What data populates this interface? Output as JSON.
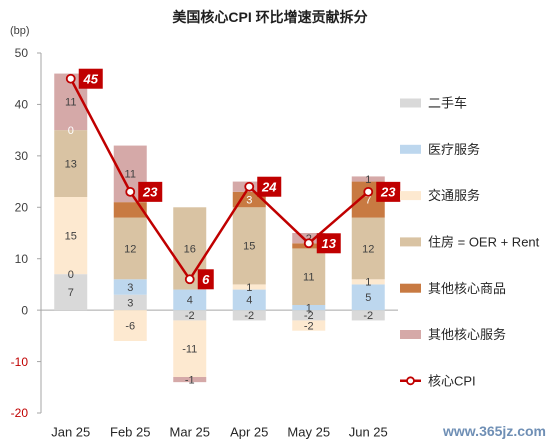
{
  "watermark": "www.365jz.com",
  "chart_data": {
    "type": "bar",
    "stacked": true,
    "title": "美国核心CPI 环比增速贡献拆分",
    "ylabel": "(bp)",
    "xlabel": "",
    "ylim": [
      -20,
      50
    ],
    "yticks": [
      -20,
      -10,
      0,
      10,
      20,
      30,
      40,
      50
    ],
    "negative_tick_color": "#C00000",
    "grid": false,
    "legend_position": "right",
    "categories": [
      "Jan 25",
      "Feb 25",
      "Mar 25",
      "Apr 25",
      "May 25",
      "Jun 25"
    ],
    "series": [
      {
        "name": "二手车",
        "type": "bar",
        "color": "#D9D9D9",
        "label_color": "#404040",
        "values": [
          7,
          3,
          -2,
          -2,
          -2,
          -2
        ],
        "labels": [
          "7",
          "3",
          "-2",
          "-2",
          "-2",
          "-2"
        ]
      },
      {
        "name": "医疗服务",
        "type": "bar",
        "color": "#BDD7EE",
        "label_color": "#404040",
        "values": [
          0,
          3,
          4,
          4,
          1,
          5
        ],
        "labels": [
          "0",
          "3",
          "4",
          "4",
          "1",
          "5"
        ]
      },
      {
        "name": "交通服务",
        "type": "bar",
        "color": "#FDE9D0",
        "label_color": "#404040",
        "values": [
          15,
          -6,
          -11,
          1,
          -2,
          1
        ],
        "labels": [
          "15",
          "-6",
          "-11",
          "1",
          "-2",
          "1"
        ]
      },
      {
        "name": "住房 = OER + Rent",
        "type": "bar",
        "color": "#D9C3A3",
        "label_color": "#404040",
        "values": [
          13,
          12,
          16,
          15,
          11,
          12
        ],
        "labels": [
          "13",
          "12",
          "16",
          "15",
          "11",
          "12"
        ]
      },
      {
        "name": "其他核心商品",
        "type": "bar",
        "color": "#C87A42",
        "label_color": "#FFFFFF",
        "values": [
          0,
          3,
          0,
          3,
          1,
          7
        ],
        "labels": [
          "0",
          null,
          null,
          "3",
          null,
          "7"
        ]
      },
      {
        "name": "其他核心服务",
        "type": "bar",
        "color": "#D5A9A8",
        "label_color": "#404040",
        "values": [
          11,
          11,
          -1,
          2,
          2,
          1
        ],
        "labels": [
          "11",
          "11",
          "-1",
          "2",
          "2",
          "1"
        ]
      },
      {
        "name": "核心CPI",
        "type": "line",
        "color": "#C00000",
        "label_color": "#FFFFFF",
        "values": [
          45,
          23,
          6,
          24,
          13,
          23
        ]
      }
    ]
  }
}
